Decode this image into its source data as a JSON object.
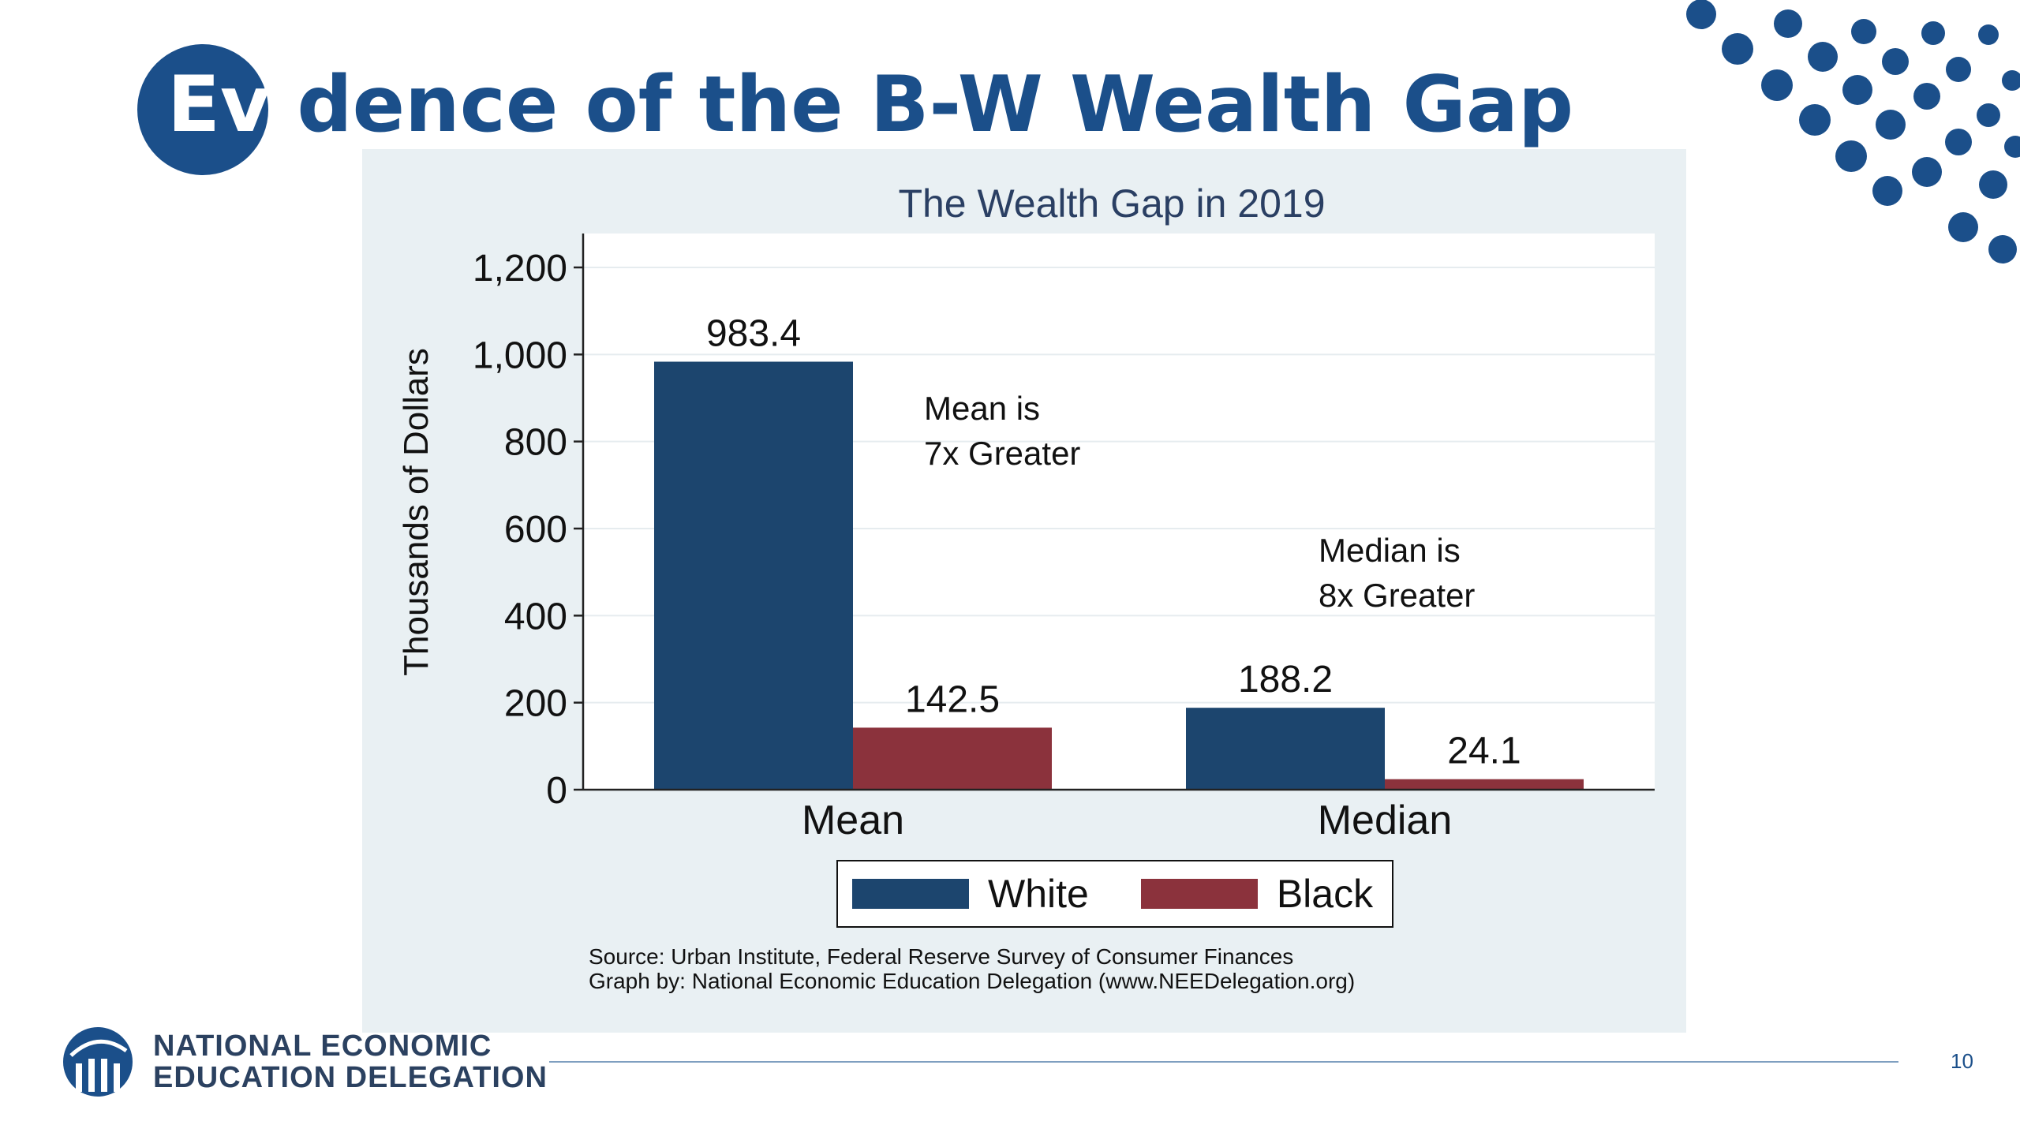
{
  "slide": {
    "title_highlight": "Evi",
    "title_rest": "dence of the B-W Wealth Gap",
    "page_number": "10"
  },
  "colors": {
    "brand_blue": "#1b4f8a",
    "white_series": "#1c456e",
    "black_series": "#8b323c",
    "panel_bg": "#e9f0f3"
  },
  "chart_data": {
    "type": "bar",
    "title": "The Wealth Gap in 2019",
    "ylabel": "Thousands of Dollars",
    "xlabel": "",
    "categories": [
      "Mean",
      "Median"
    ],
    "series": [
      {
        "name": "White",
        "values": [
          983.4,
          188.2
        ],
        "labels": [
          "983.4",
          "188.2"
        ]
      },
      {
        "name": "Black",
        "values": [
          142.5,
          24.1
        ],
        "labels": [
          "142.5",
          "24.1"
        ]
      }
    ],
    "ylim": [
      0,
      1200
    ],
    "yticks": [
      0,
      200,
      400,
      600,
      800,
      1000,
      1200
    ],
    "ytick_labels": [
      "0",
      "200",
      "400",
      "600",
      "800",
      "1,000",
      "1,200"
    ],
    "grid": true,
    "legend": "bottom",
    "annotations": {
      "mean_line1": "Mean is",
      "mean_line2": "7x Greater",
      "median_line1": "Median is",
      "median_line2": "8x Greater"
    },
    "source_line1": "Source: Urban Institute, Federal Reserve Survey of Consumer Finances",
    "source_line2": "Graph by: National Economic Education Delegation (www.NEEDelegation.org)"
  },
  "footer": {
    "org_line1": "NATIONAL ECONOMIC",
    "org_line2": "EDUCATION DELEGATION",
    "logo_icon": "columns-globe-icon"
  }
}
